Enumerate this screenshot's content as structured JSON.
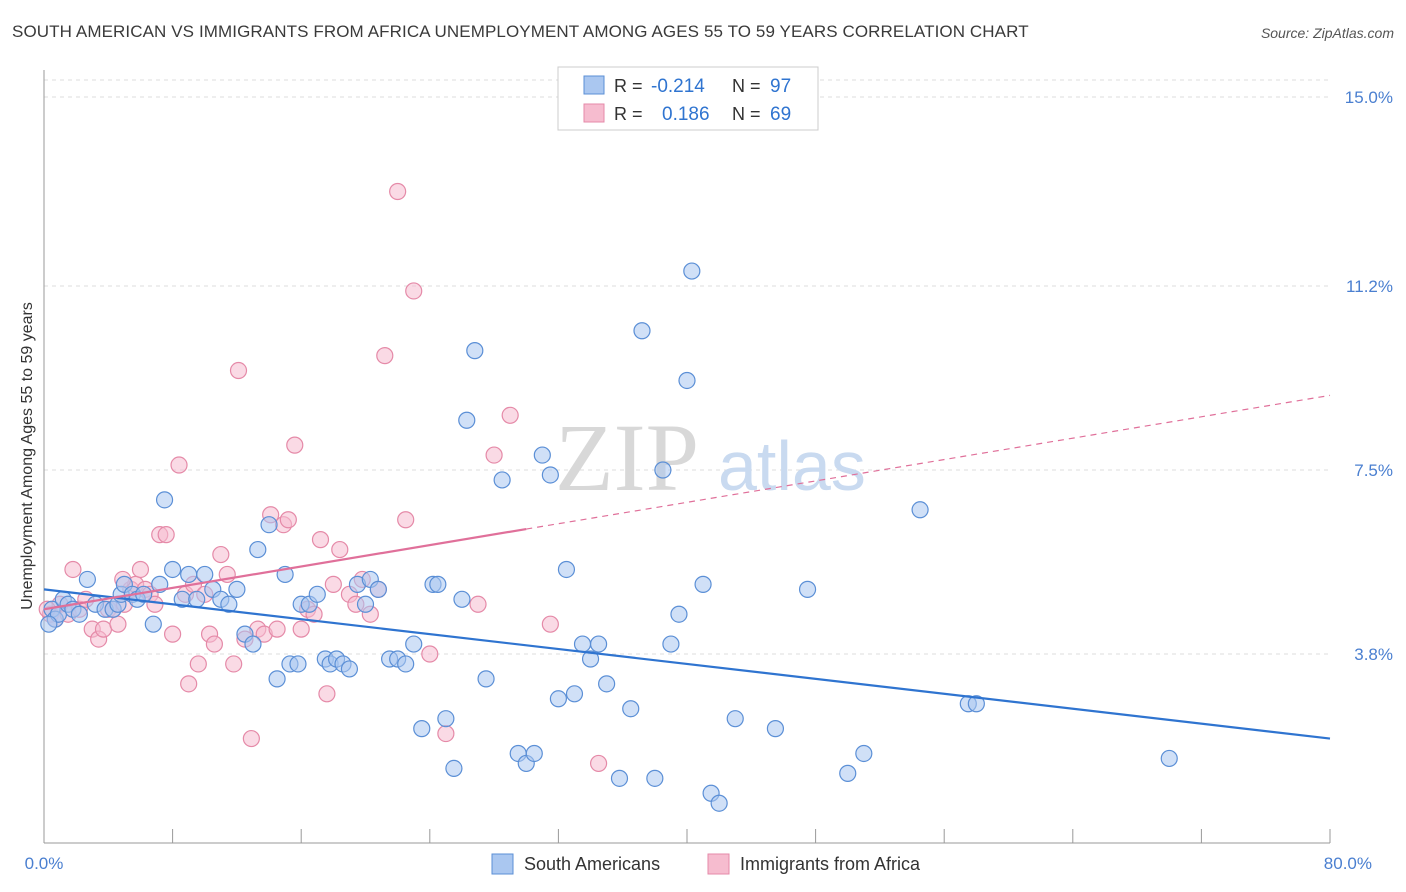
{
  "title": "SOUTH AMERICAN VS IMMIGRANTS FROM AFRICA UNEMPLOYMENT AMONG AGES 55 TO 59 YEARS CORRELATION CHART",
  "source": "Source: ZipAtlas.com",
  "watermark": {
    "zip": "ZIP",
    "atlas": "atlas"
  },
  "colors": {
    "blue": "#5b8fd6",
    "blue_fill": "#aac7f0",
    "blue_line": "#2f74d0",
    "pink": "#e58aa8",
    "pink_fill": "#f6bccf",
    "pink_line": "#e0709a",
    "axis_text": "#4a7fd0",
    "grid": "#dddddd"
  },
  "legend": {
    "rows": [
      {
        "r_label": "R =",
        "r_value": "-0.214",
        "n_label": "N =",
        "n_value": "97"
      },
      {
        "r_label": "R =",
        "r_value": "0.186",
        "n_label": "N =",
        "n_value": "69"
      }
    ]
  },
  "chart_data": {
    "type": "scatter",
    "title": "SOUTH AMERICAN VS IMMIGRANTS FROM AFRICA UNEMPLOYMENT AMONG AGES 55 TO 59 YEARS CORRELATION CHART",
    "xlabel": "",
    "ylabel": "Unemployment Among Ages 55 to 59 years",
    "xlim": [
      0,
      80
    ],
    "ylim": [
      0,
      15.5
    ],
    "x_tick_labels": [
      "0.0%",
      "80.0%"
    ],
    "y_ticks": [
      3.8,
      7.5,
      11.2,
      15.0
    ],
    "y_tick_labels": [
      "3.8%",
      "7.5%",
      "11.2%",
      "15.0%"
    ],
    "grid": "horizontal dashed",
    "legend_position": "bottom",
    "series": [
      {
        "name": "South Americans",
        "color": "#5b8fd6",
        "trend": {
          "x": [
            0,
            80
          ],
          "y": [
            5.1,
            2.1
          ],
          "dashed_from": null
        },
        "points": [
          [
            0.5,
            4.7
          ],
          [
            0.7,
            4.5
          ],
          [
            0.9,
            4.6
          ],
          [
            1.2,
            4.9
          ],
          [
            1.5,
            4.8
          ],
          [
            1.8,
            4.7
          ],
          [
            2.2,
            4.6
          ],
          [
            2.7,
            5.3
          ],
          [
            3.2,
            4.8
          ],
          [
            3.8,
            4.7
          ],
          [
            4.3,
            4.7
          ],
          [
            4.6,
            4.8
          ],
          [
            4.8,
            5.0
          ],
          [
            5.0,
            5.2
          ],
          [
            5.5,
            5.0
          ],
          [
            5.8,
            4.9
          ],
          [
            6.2,
            5.0
          ],
          [
            6.8,
            4.4
          ],
          [
            7.2,
            5.2
          ],
          [
            7.5,
            6.9
          ],
          [
            8.0,
            5.5
          ],
          [
            8.6,
            4.9
          ],
          [
            9.0,
            5.4
          ],
          [
            9.5,
            4.9
          ],
          [
            10.0,
            5.4
          ],
          [
            10.5,
            5.1
          ],
          [
            11.0,
            4.9
          ],
          [
            11.5,
            4.8
          ],
          [
            12.0,
            5.1
          ],
          [
            12.5,
            4.2
          ],
          [
            13.0,
            4.0
          ],
          [
            13.3,
            5.9
          ],
          [
            14.0,
            6.4
          ],
          [
            14.5,
            3.3
          ],
          [
            15.0,
            5.4
          ],
          [
            15.3,
            3.6
          ],
          [
            15.8,
            3.6
          ],
          [
            16.0,
            4.8
          ],
          [
            16.5,
            4.8
          ],
          [
            17.0,
            5.0
          ],
          [
            17.5,
            3.7
          ],
          [
            17.8,
            3.6
          ],
          [
            18.2,
            3.7
          ],
          [
            18.6,
            3.6
          ],
          [
            19.0,
            3.5
          ],
          [
            19.5,
            5.2
          ],
          [
            20.0,
            4.8
          ],
          [
            20.3,
            5.3
          ],
          [
            20.8,
            5.1
          ],
          [
            21.5,
            3.7
          ],
          [
            22.0,
            3.7
          ],
          [
            22.5,
            3.6
          ],
          [
            23.0,
            4.0
          ],
          [
            23.5,
            2.3
          ],
          [
            24.2,
            5.2
          ],
          [
            24.5,
            5.2
          ],
          [
            25.0,
            2.5
          ],
          [
            25.5,
            1.5
          ],
          [
            26.0,
            4.9
          ],
          [
            26.3,
            8.5
          ],
          [
            26.8,
            9.9
          ],
          [
            27.5,
            3.3
          ],
          [
            28.5,
            7.3
          ],
          [
            29.5,
            1.8
          ],
          [
            30.0,
            1.6
          ],
          [
            30.5,
            1.8
          ],
          [
            31.0,
            7.8
          ],
          [
            31.5,
            7.4
          ],
          [
            32.0,
            2.9
          ],
          [
            32.5,
            5.5
          ],
          [
            33.0,
            3.0
          ],
          [
            33.5,
            4.0
          ],
          [
            34.0,
            3.7
          ],
          [
            34.5,
            4.0
          ],
          [
            35.0,
            3.2
          ],
          [
            35.8,
            1.3
          ],
          [
            36.5,
            2.7
          ],
          [
            37.2,
            10.3
          ],
          [
            38.0,
            1.3
          ],
          [
            38.5,
            7.5
          ],
          [
            39.0,
            4.0
          ],
          [
            39.5,
            4.6
          ],
          [
            40.0,
            9.3
          ],
          [
            40.3,
            11.5
          ],
          [
            41.0,
            5.2
          ],
          [
            41.5,
            1.0
          ],
          [
            42.0,
            0.8
          ],
          [
            43.0,
            2.5
          ],
          [
            45.5,
            2.3
          ],
          [
            47.5,
            5.1
          ],
          [
            50.0,
            1.4
          ],
          [
            51.0,
            1.8
          ],
          [
            54.5,
            6.7
          ],
          [
            57.5,
            2.8
          ],
          [
            58.0,
            2.8
          ],
          [
            70.0,
            1.7
          ],
          [
            0.3,
            4.4
          ]
        ]
      },
      {
        "name": "Immigrants from Africa",
        "color": "#e58aa8",
        "trend": {
          "x": [
            0,
            80
          ],
          "y": [
            4.7,
            9.0
          ],
          "dashed_from": 30
        },
        "points": [
          [
            0.4,
            4.6
          ],
          [
            0.7,
            4.5
          ],
          [
            1.0,
            4.8
          ],
          [
            1.5,
            4.6
          ],
          [
            1.8,
            5.5
          ],
          [
            2.2,
            4.7
          ],
          [
            2.6,
            4.9
          ],
          [
            3.0,
            4.3
          ],
          [
            3.4,
            4.1
          ],
          [
            3.7,
            4.3
          ],
          [
            4.0,
            4.7
          ],
          [
            4.3,
            4.7
          ],
          [
            4.6,
            4.4
          ],
          [
            5.0,
            4.8
          ],
          [
            5.4,
            5.1
          ],
          [
            5.7,
            5.2
          ],
          [
            6.0,
            5.5
          ],
          [
            6.3,
            5.1
          ],
          [
            6.6,
            5.0
          ],
          [
            6.9,
            4.8
          ],
          [
            7.2,
            6.2
          ],
          [
            7.6,
            6.2
          ],
          [
            8.0,
            4.2
          ],
          [
            8.4,
            7.6
          ],
          [
            8.8,
            5.0
          ],
          [
            9.0,
            3.2
          ],
          [
            9.3,
            5.2
          ],
          [
            9.6,
            3.6
          ],
          [
            10.0,
            5.0
          ],
          [
            10.3,
            4.2
          ],
          [
            10.6,
            4.0
          ],
          [
            11.0,
            5.8
          ],
          [
            11.4,
            5.4
          ],
          [
            11.8,
            3.6
          ],
          [
            12.1,
            9.5
          ],
          [
            12.5,
            4.1
          ],
          [
            12.9,
            2.1
          ],
          [
            13.3,
            4.3
          ],
          [
            13.7,
            4.2
          ],
          [
            14.1,
            6.6
          ],
          [
            14.5,
            4.3
          ],
          [
            14.9,
            6.4
          ],
          [
            15.2,
            6.5
          ],
          [
            15.6,
            8.0
          ],
          [
            16.0,
            4.3
          ],
          [
            16.4,
            4.7
          ],
          [
            16.8,
            4.6
          ],
          [
            17.2,
            6.1
          ],
          [
            17.6,
            3.0
          ],
          [
            18.0,
            5.2
          ],
          [
            18.4,
            5.9
          ],
          [
            19.0,
            5.0
          ],
          [
            19.4,
            4.8
          ],
          [
            19.8,
            5.3
          ],
          [
            20.3,
            4.6
          ],
          [
            20.8,
            5.1
          ],
          [
            21.2,
            9.8
          ],
          [
            22.0,
            13.1
          ],
          [
            22.5,
            6.5
          ],
          [
            23.0,
            11.1
          ],
          [
            24.0,
            3.8
          ],
          [
            25.0,
            2.2
          ],
          [
            27.0,
            4.8
          ],
          [
            28.0,
            7.8
          ],
          [
            29.0,
            8.6
          ],
          [
            31.5,
            4.4
          ],
          [
            34.5,
            1.6
          ],
          [
            4.9,
            5.3
          ],
          [
            0.2,
            4.7
          ]
        ]
      }
    ]
  },
  "bottom_legend": [
    {
      "label": "South Americans"
    },
    {
      "label": "Immigrants from Africa"
    }
  ]
}
